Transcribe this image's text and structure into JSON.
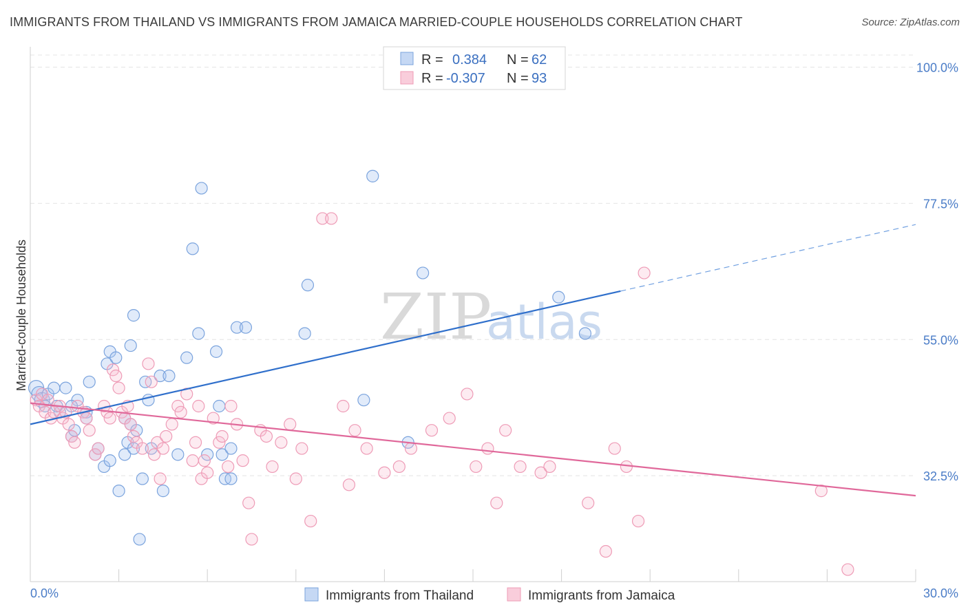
{
  "title": "IMMIGRANTS FROM THAILAND VS IMMIGRANTS FROM JAMAICA MARRIED-COUPLE HOUSEHOLDS CORRELATION CHART",
  "source": "Source: ZipAtlas.com",
  "watermark": {
    "part1": "ZIP",
    "part2": "atlas"
  },
  "legend": {
    "r_label": "R =",
    "n_label": "N =",
    "rows": [
      {
        "r": "0.384",
        "n": "62",
        "color": "#6f9fe0"
      },
      {
        "r": "-0.307",
        "n": "93",
        "color": "#ee8fae"
      }
    ]
  },
  "chart_data": {
    "type": "scatter",
    "xlabel": "",
    "ylabel": "Married-couple Households",
    "xlim": [
      0,
      30
    ],
    "ylim": [
      15,
      102
    ],
    "x_tick_labels": {
      "left": "0.0%",
      "right": "30.0%"
    },
    "y_ticks": [
      {
        "value": 100,
        "label": "100.0%"
      },
      {
        "value": 77.5,
        "label": "77.5%"
      },
      {
        "value": 55,
        "label": "55.0%"
      },
      {
        "value": 32.5,
        "label": "32.5%"
      }
    ],
    "series": [
      {
        "name": "Immigrants from Thailand",
        "color": "#6f9fe0",
        "trend": {
          "x0": 0,
          "y0": 41.0,
          "x1": 20,
          "y1": 63.0,
          "dash_to_x": 30,
          "dash_to_y": 74.0
        },
        "points": [
          [
            0.2,
            47
          ],
          [
            0.3,
            46
          ],
          [
            0.4,
            45
          ],
          [
            0.5,
            44
          ],
          [
            0.6,
            46
          ],
          [
            0.8,
            47
          ],
          [
            1.0,
            43
          ],
          [
            1.2,
            47
          ],
          [
            0.9,
            44
          ],
          [
            1.4,
            39
          ],
          [
            1.5,
            40
          ],
          [
            1.6,
            45
          ],
          [
            1.4,
            44
          ],
          [
            1.9,
            43
          ],
          [
            2.0,
            48
          ],
          [
            1.9,
            42
          ],
          [
            2.2,
            36
          ],
          [
            2.5,
            34
          ],
          [
            2.3,
            37
          ],
          [
            2.6,
            51
          ],
          [
            2.7,
            53
          ],
          [
            2.7,
            35
          ],
          [
            2.9,
            52
          ],
          [
            3.0,
            30
          ],
          [
            3.2,
            42
          ],
          [
            3.3,
            38
          ],
          [
            3.2,
            36
          ],
          [
            3.4,
            54
          ],
          [
            3.4,
            41
          ],
          [
            3.5,
            59
          ],
          [
            3.5,
            37
          ],
          [
            3.6,
            40
          ],
          [
            3.7,
            22
          ],
          [
            3.8,
            32
          ],
          [
            3.9,
            48
          ],
          [
            4.0,
            45
          ],
          [
            4.1,
            37
          ],
          [
            4.4,
            49
          ],
          [
            4.5,
            30
          ],
          [
            4.7,
            49
          ],
          [
            5.0,
            36
          ],
          [
            5.3,
            52
          ],
          [
            5.5,
            70
          ],
          [
            5.7,
            56
          ],
          [
            5.8,
            80
          ],
          [
            6.0,
            36
          ],
          [
            6.3,
            53
          ],
          [
            6.4,
            44
          ],
          [
            6.5,
            36
          ],
          [
            6.6,
            32
          ],
          [
            6.8,
            32
          ],
          [
            6.8,
            37
          ],
          [
            7.0,
            57
          ],
          [
            7.3,
            57
          ],
          [
            9.4,
            64
          ],
          [
            9.3,
            56
          ],
          [
            11.3,
            45
          ],
          [
            11.6,
            82
          ],
          [
            12.8,
            38
          ],
          [
            13.3,
            66
          ],
          [
            17.9,
            62
          ],
          [
            18.8,
            56
          ]
        ]
      },
      {
        "name": "Immigrants from Jamaica",
        "color": "#ee8fae",
        "trend": {
          "x0": 0,
          "y0": 44.5,
          "x1": 30,
          "y1": 29.2
        },
        "points": [
          [
            0.2,
            45
          ],
          [
            0.3,
            44
          ],
          [
            0.4,
            46
          ],
          [
            0.5,
            43
          ],
          [
            0.6,
            45
          ],
          [
            0.7,
            42
          ],
          [
            0.8,
            43
          ],
          [
            1.0,
            44
          ],
          [
            1.1,
            42
          ],
          [
            1.2,
            43
          ],
          [
            1.3,
            41
          ],
          [
            1.4,
            39
          ],
          [
            1.5,
            38
          ],
          [
            1.6,
            44
          ],
          [
            1.8,
            43
          ],
          [
            1.9,
            42
          ],
          [
            2.0,
            40
          ],
          [
            2.2,
            36
          ],
          [
            2.3,
            37
          ],
          [
            2.5,
            44
          ],
          [
            2.6,
            43
          ],
          [
            2.7,
            42
          ],
          [
            2.8,
            50
          ],
          [
            2.9,
            49
          ],
          [
            3.0,
            47
          ],
          [
            3.1,
            43
          ],
          [
            3.2,
            42
          ],
          [
            3.3,
            44
          ],
          [
            3.4,
            41
          ],
          [
            3.5,
            39
          ],
          [
            3.6,
            38
          ],
          [
            3.8,
            37
          ],
          [
            4.0,
            51
          ],
          [
            4.1,
            48
          ],
          [
            4.2,
            36
          ],
          [
            4.3,
            38
          ],
          [
            4.4,
            32
          ],
          [
            4.5,
            37
          ],
          [
            4.6,
            39
          ],
          [
            4.8,
            41
          ],
          [
            5.0,
            44
          ],
          [
            5.1,
            43
          ],
          [
            5.3,
            46
          ],
          [
            5.5,
            35
          ],
          [
            5.6,
            38
          ],
          [
            5.7,
            44
          ],
          [
            5.8,
            32
          ],
          [
            5.9,
            35
          ],
          [
            6.0,
            33
          ],
          [
            6.2,
            42
          ],
          [
            6.4,
            38
          ],
          [
            6.5,
            39
          ],
          [
            6.7,
            34
          ],
          [
            6.8,
            44
          ],
          [
            7.0,
            41
          ],
          [
            7.2,
            35
          ],
          [
            7.4,
            28
          ],
          [
            7.5,
            22
          ],
          [
            7.8,
            40
          ],
          [
            8.0,
            39
          ],
          [
            8.2,
            34
          ],
          [
            8.5,
            38
          ],
          [
            8.8,
            41
          ],
          [
            9.0,
            32
          ],
          [
            9.2,
            37
          ],
          [
            9.5,
            25
          ],
          [
            9.9,
            75
          ],
          [
            10.2,
            75
          ],
          [
            10.6,
            44
          ],
          [
            10.8,
            31
          ],
          [
            11.0,
            40
          ],
          [
            11.4,
            37
          ],
          [
            12.0,
            33
          ],
          [
            12.5,
            34
          ],
          [
            12.9,
            37
          ],
          [
            13.6,
            40
          ],
          [
            14.2,
            42
          ],
          [
            14.8,
            46
          ],
          [
            15.1,
            34
          ],
          [
            15.5,
            37
          ],
          [
            15.8,
            28
          ],
          [
            16.1,
            40
          ],
          [
            16.6,
            34
          ],
          [
            17.3,
            33
          ],
          [
            17.6,
            34
          ],
          [
            18.9,
            28
          ],
          [
            19.5,
            20
          ],
          [
            19.8,
            37
          ],
          [
            20.2,
            34
          ],
          [
            20.6,
            25
          ],
          [
            20.8,
            66
          ],
          [
            26.8,
            30
          ],
          [
            27.7,
            17
          ]
        ]
      }
    ]
  }
}
